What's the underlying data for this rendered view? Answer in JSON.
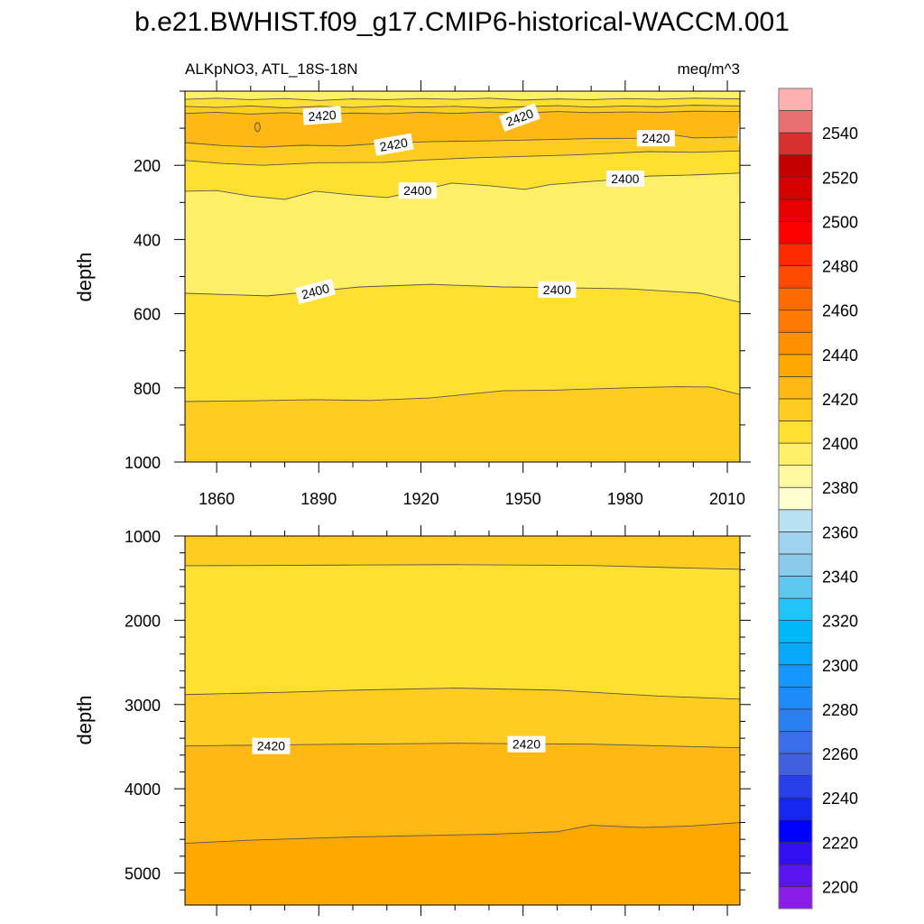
{
  "chart_data": {
    "type": "heatmap",
    "subtype": "filled-contour",
    "title": "b.e21.BWHIST.f09_g17.CMIP6-historical-WACCM.001",
    "left_subtitle": "ALKpNO3, ATL_18S-18N",
    "right_subtitle": "meq/m^3",
    "ylabel": "depth",
    "xlim": [
      1850.7,
      2013.7
    ],
    "x_ticks": [
      1860,
      1890,
      1920,
      1950,
      1980,
      2010
    ],
    "x_tick_labels": [
      "1860",
      "1890",
      "1920",
      "1950",
      "1980",
      "2010"
    ],
    "panels": [
      {
        "name": "upper-ocean",
        "ylim": [
          0,
          1000
        ],
        "y_ticks": [
          200,
          400,
          600,
          800,
          1000
        ],
        "y_tick_labels": [
          "200",
          "400",
          "600",
          "800",
          "1000"
        ],
        "y_minor_step": 100,
        "show_x_labels": true,
        "band_values": [
          2390,
          2400,
          2410,
          2420,
          2410,
          2400,
          2390,
          2400,
          2410
        ],
        "contours": [
          {
            "level": 2400,
            "points": [
              [
                1850.7,
                22
              ],
              [
                1860,
                19
              ],
              [
                1870,
                23
              ],
              [
                1880,
                20
              ],
              [
                1890,
                25
              ],
              [
                1900,
                21
              ],
              [
                1910,
                23
              ],
              [
                1920,
                20
              ],
              [
                1930,
                22
              ],
              [
                1940,
                19
              ],
              [
                1950,
                24
              ],
              [
                1960,
                21
              ],
              [
                1970,
                23
              ],
              [
                1980,
                20
              ],
              [
                1990,
                22
              ],
              [
                2000,
                19
              ],
              [
                2013.7,
                21
              ]
            ]
          },
          {
            "level": 2410,
            "points": [
              [
                1850.7,
                41
              ],
              [
                1860,
                44
              ],
              [
                1870,
                40
              ],
              [
                1880,
                45
              ],
              [
                1890,
                41
              ],
              [
                1900,
                44
              ],
              [
                1910,
                40
              ],
              [
                1920,
                43
              ],
              [
                1930,
                41
              ],
              [
                1940,
                45
              ],
              [
                1950,
                42
              ],
              [
                1960,
                39
              ],
              [
                1970,
                43
              ],
              [
                1980,
                40
              ],
              [
                1990,
                42
              ],
              [
                2000,
                38
              ],
              [
                2013.7,
                40
              ]
            ]
          },
          {
            "level": 2420,
            "points": [
              [
                1850.7,
                60
              ],
              [
                1860,
                57
              ],
              [
                1870,
                62
              ],
              [
                1880,
                58
              ],
              [
                1890,
                63
              ],
              [
                1900,
                59
              ],
              [
                1910,
                61
              ],
              [
                1920,
                57
              ],
              [
                1930,
                60
              ],
              [
                1940,
                56
              ],
              [
                1950,
                59
              ],
              [
                1960,
                55
              ],
              [
                1970,
                58
              ],
              [
                1980,
                56
              ],
              [
                1990,
                57
              ],
              [
                2000,
                54
              ],
              [
                2013.7,
                55
              ]
            ]
          },
          {
            "level": 2420,
            "points": [
              [
                1850.7,
                139
              ],
              [
                1862,
                147
              ],
              [
                1873.5,
                151
              ],
              [
                1885,
                146
              ],
              [
                1897,
                148
              ],
              [
                1910,
                140
              ],
              [
                1923.5,
                136
              ],
              [
                1940,
                134
              ],
              [
                1955.6,
                131
              ],
              [
                1970,
                128
              ],
              [
                1987.4,
                127
              ],
              [
                1995,
                119
              ],
              [
                2000,
                126
              ],
              [
                2013,
                124
              ]
            ]
          },
          {
            "level": 2410,
            "points": [
              [
                1850.7,
                187
              ],
              [
                1862,
                195
              ],
              [
                1873.5,
                200
              ],
              [
                1890,
                193
              ],
              [
                1909,
                192
              ],
              [
                1920,
                186
              ],
              [
                1935,
                180
              ],
              [
                1950,
                176
              ],
              [
                1965,
                172
              ],
              [
                1975,
                168
              ],
              [
                1987,
                163
              ],
              [
                2000,
                165
              ],
              [
                2013.7,
                161
              ]
            ]
          },
          {
            "level": 2400,
            "points": [
              [
                1850.7,
                270
              ],
              [
                1860,
                268
              ],
              [
                1870,
                283
              ],
              [
                1880,
                292
              ],
              [
                1889,
                270
              ],
              [
                1900,
                280
              ],
              [
                1910,
                287
              ],
              [
                1920,
                268
              ],
              [
                1929,
                248
              ],
              [
                1940,
                255
              ],
              [
                1950.5,
                265
              ],
              [
                1958,
                252
              ],
              [
                1966.4,
                246
              ],
              [
                1975,
                240
              ],
              [
                1987,
                229
              ],
              [
                2000,
                226
              ],
              [
                2013.7,
                221
              ]
            ]
          },
          {
            "level": 2400,
            "points": [
              [
                1850.7,
                545
              ],
              [
                1875,
                552
              ],
              [
                1902,
                528
              ],
              [
                1923,
                521
              ],
              [
                1944,
                528
              ],
              [
                1960,
                530
              ],
              [
                1981,
                533
              ],
              [
                2002,
                545
              ],
              [
                2013.7,
                569
              ]
            ]
          },
          {
            "level": 2410,
            "points": [
              [
                1850.7,
                837
              ],
              [
                1870,
                835
              ],
              [
                1889,
                832
              ],
              [
                1905,
                834
              ],
              [
                1923,
                827
              ],
              [
                1944,
                808
              ],
              [
                1960,
                806
              ],
              [
                1981,
                800
              ],
              [
                1995,
                797
              ],
              [
                2005,
                798
              ],
              [
                2013.7,
                818
              ]
            ]
          }
        ],
        "closed_contours": [
          {
            "level": 2420,
            "center": [
              1872,
              97
            ]
          }
        ],
        "contour_labels": [
          {
            "text": "2420",
            "year": 1891,
            "depth": 66
          },
          {
            "text": "2420",
            "year": 1949,
            "depth": 71
          },
          {
            "text": "2420",
            "year": 1912,
            "depth": 144
          },
          {
            "text": "2420",
            "year": 1989,
            "depth": 127
          },
          {
            "text": "2400",
            "year": 1919,
            "depth": 268
          },
          {
            "text": "2400",
            "year": 1980,
            "depth": 236
          },
          {
            "text": "2400",
            "year": 1889,
            "depth": 540
          },
          {
            "text": "2400",
            "year": 1960,
            "depth": 535
          }
        ]
      },
      {
        "name": "deep-ocean",
        "ylim": [
          1000,
          5380
        ],
        "y_ticks": [
          1000,
          2000,
          3000,
          4000,
          5000
        ],
        "y_tick_labels": [
          "1000",
          "2000",
          "3000",
          "4000",
          "5000"
        ],
        "y_minor_step": 200,
        "show_x_labels": false,
        "band_values": [
          2410,
          2400,
          2410,
          2420,
          2430
        ],
        "contours": [
          {
            "level": 2410,
            "points": [
              [
                1850.7,
                1353
              ],
              [
                1900,
                1345
              ],
              [
                1930,
                1340
              ],
              [
                1970,
                1350
              ],
              [
                2013.7,
                1396
              ]
            ]
          },
          {
            "level": 2410,
            "points": [
              [
                1850.7,
                2882
              ],
              [
                1880,
                2855
              ],
              [
                1900,
                2830
              ],
              [
                1930,
                2805
              ],
              [
                1960,
                2830
              ],
              [
                1990,
                2900
              ],
              [
                2013.7,
                2936
              ]
            ]
          },
          {
            "level": 2420,
            "points": [
              [
                1850.7,
                3492
              ],
              [
                1880,
                3478
              ],
              [
                1900,
                3470
              ],
              [
                1930,
                3460
              ],
              [
                1970,
                3470
              ],
              [
                2000,
                3500
              ],
              [
                2013.7,
                3513
              ]
            ]
          },
          {
            "level": 2430,
            "points": [
              [
                1850.7,
                4647
              ],
              [
                1870,
                4610
              ],
              [
                1900,
                4572
              ],
              [
                1940,
                4540
              ],
              [
                1960,
                4510
              ],
              [
                1970,
                4433
              ],
              [
                1985,
                4460
              ],
              [
                2000,
                4440
              ],
              [
                2013.7,
                4401
              ]
            ]
          }
        ],
        "closed_contours": [],
        "contour_labels": [
          {
            "text": "2420",
            "year": 1876,
            "depth": 3492
          },
          {
            "text": "2420",
            "year": 1951,
            "depth": 3471
          }
        ]
      }
    ],
    "colorbar": {
      "levels_min": 2200,
      "levels_max": 2550,
      "level_step": 10,
      "tick_labels": [
        "2200",
        "2220",
        "2240",
        "2260",
        "2280",
        "2300",
        "2320",
        "2340",
        "2360",
        "2380",
        "2400",
        "2420",
        "2440",
        "2460",
        "2480",
        "2500",
        "2520",
        "2540"
      ],
      "colors_low_to_high": [
        "#8a1ee8",
        "#5a14f0",
        "#3010f0",
        "#0000ff",
        "#1428f0",
        "#2840e8",
        "#4060e0",
        "#3a6ee8",
        "#2a80f0",
        "#1e8cf8",
        "#1498ff",
        "#08a8f8",
        "#00b8f8",
        "#20c4f8",
        "#60c8f0",
        "#8ccaeb",
        "#a0d4ee",
        "#b8e2f2",
        "#ffffd0",
        "#fff8a0",
        "#fff068",
        "#ffe030",
        "#ffcc22",
        "#ffb814",
        "#ffa800",
        "#ff9000",
        "#ff7a00",
        "#ff6a00",
        "#ff4a00",
        "#ff2a00",
        "#ff0000",
        "#e60000",
        "#d40000",
        "#c40000",
        "#d83030",
        "#e87070",
        "#ffb0b0"
      ]
    }
  }
}
